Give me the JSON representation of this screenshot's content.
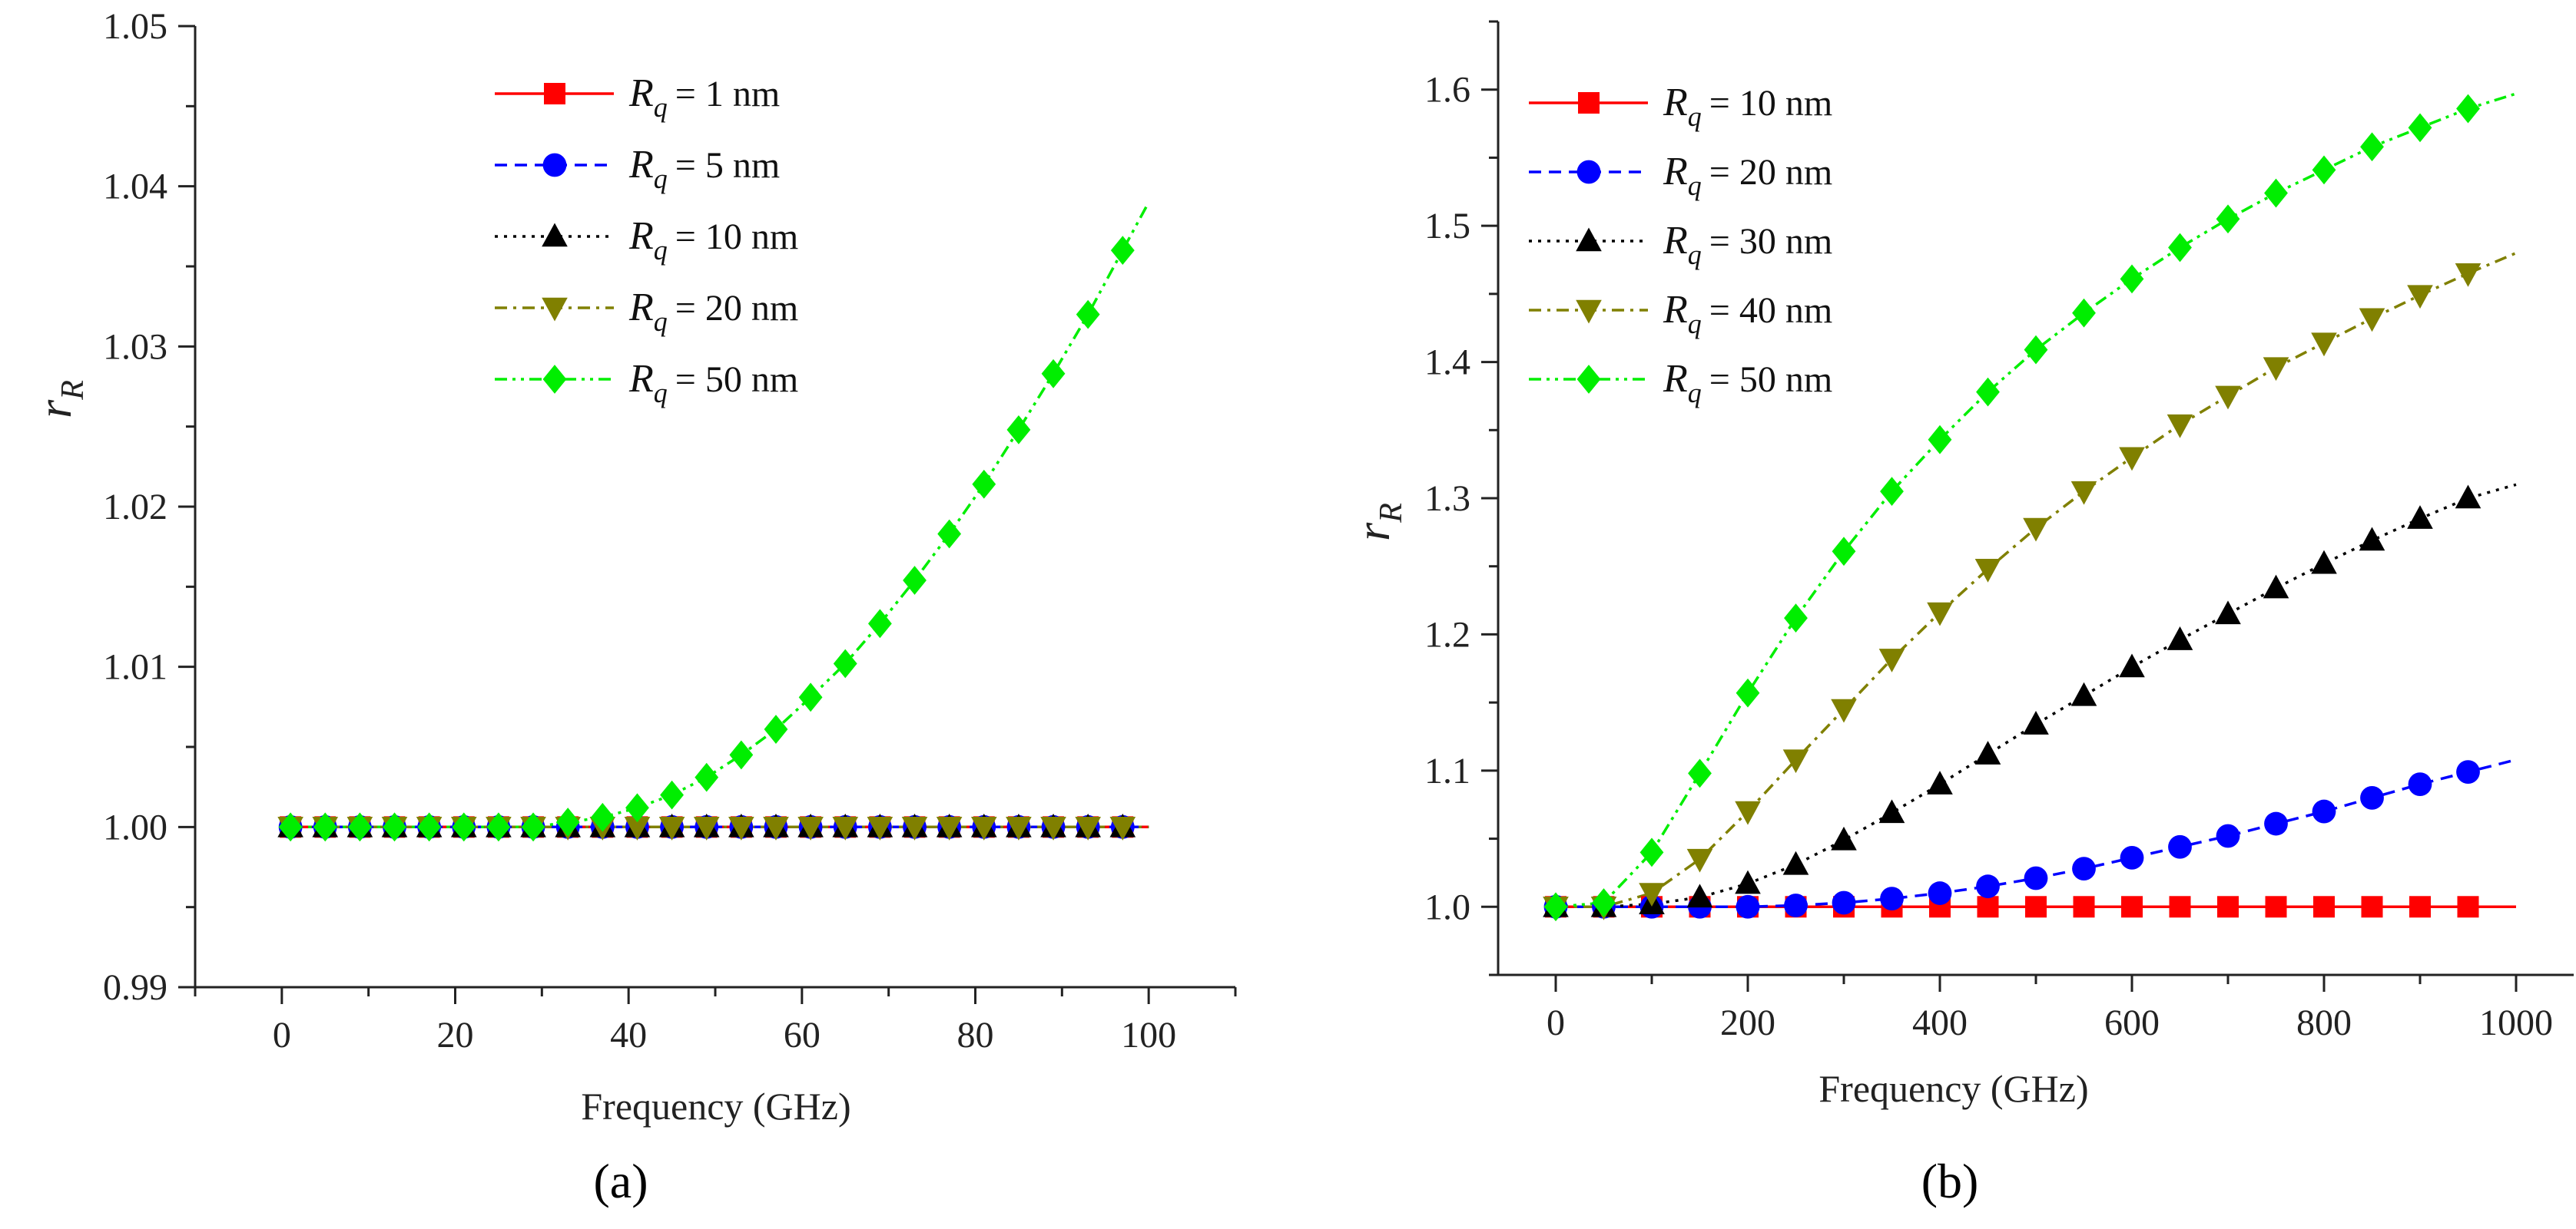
{
  "chart_data": [
    {
      "type": "line",
      "panel": "(a)",
      "xlabel": "Frequency (GHz)",
      "ylabel": "r_R",
      "ylabel_main": "r",
      "ylabel_sub": "R",
      "xlim": [
        -10,
        110
      ],
      "ylim": [
        0.99,
        1.05
      ],
      "xticks": [
        0,
        20,
        40,
        60,
        80,
        100
      ],
      "yticks": [
        0.99,
        1.0,
        1.01,
        1.02,
        1.03,
        1.04,
        1.05
      ],
      "ytick_labels": [
        "0.99",
        "1.00",
        "1.01",
        "1.02",
        "1.03",
        "1.04",
        "1.05"
      ],
      "legend_position": "top-center",
      "series": [
        {
          "name": "Rq = 1 nm",
          "value_text": "= 1 nm",
          "color": "#ff0000",
          "marker": "square",
          "dash": "solid",
          "x": [
            1,
            5,
            9,
            13,
            17,
            21,
            25,
            29,
            33,
            37,
            41,
            45,
            49,
            53,
            57,
            61,
            65,
            69,
            73,
            77,
            81,
            85,
            89,
            93,
            97
          ],
          "y": [
            1,
            1,
            1,
            1,
            1,
            1,
            1,
            1,
            1,
            1,
            1,
            1,
            1,
            1,
            1,
            1,
            1,
            1,
            1,
            1,
            1,
            1,
            1,
            1,
            1
          ],
          "line_end": [
            100,
            1.0
          ]
        },
        {
          "name": "Rq = 5 nm",
          "value_text": "= 5 nm",
          "color": "#0000ff",
          "marker": "circle",
          "dash": "dash",
          "x": [
            1,
            5,
            9,
            13,
            17,
            21,
            25,
            29,
            33,
            37,
            41,
            45,
            49,
            53,
            57,
            61,
            65,
            69,
            73,
            77,
            81,
            85,
            89,
            93,
            97
          ],
          "y": [
            1,
            1,
            1,
            1,
            1,
            1,
            1,
            1,
            1,
            1,
            1,
            1,
            1,
            1,
            1,
            1,
            1,
            1,
            1,
            1,
            1,
            1,
            1,
            1,
            1
          ],
          "line_end": [
            100,
            1.0
          ]
        },
        {
          "name": "Rq = 10 nm",
          "value_text": "= 10 nm",
          "color": "#000000",
          "marker": "triangle-up",
          "dash": "dot",
          "x": [
            1,
            5,
            9,
            13,
            17,
            21,
            25,
            29,
            33,
            37,
            41,
            45,
            49,
            53,
            57,
            61,
            65,
            69,
            73,
            77,
            81,
            85,
            89,
            93,
            97
          ],
          "y": [
            1,
            1,
            1,
            1,
            1,
            1,
            1,
            1,
            1,
            1,
            1,
            1,
            1,
            1,
            1,
            1,
            1,
            1,
            1,
            1,
            1,
            1,
            1,
            1,
            1
          ],
          "line_end": [
            100,
            1.0
          ]
        },
        {
          "name": "Rq = 20 nm",
          "value_text": "= 20 nm",
          "color": "#808000",
          "marker": "triangle-down",
          "dash": "dashdot",
          "x": [
            1,
            5,
            9,
            13,
            17,
            21,
            25,
            29,
            33,
            37,
            41,
            45,
            49,
            53,
            57,
            61,
            65,
            69,
            73,
            77,
            81,
            85,
            89,
            93,
            97
          ],
          "y": [
            1,
            1,
            1,
            1,
            1,
            1,
            1,
            1,
            1,
            1,
            1,
            1,
            1,
            1,
            1,
            1,
            1,
            1,
            1,
            1,
            1,
            1,
            1,
            1,
            1
          ],
          "line_end": [
            100,
            1.0
          ]
        },
        {
          "name": "Rq = 50 nm",
          "value_text": "= 50 nm",
          "color": "#00ee00",
          "marker": "diamond",
          "dash": "dashdotdot",
          "x": [
            1,
            5,
            9,
            13,
            17,
            21,
            25,
            29,
            33,
            37,
            41,
            45,
            49,
            53,
            57,
            61,
            65,
            69,
            73,
            77,
            81,
            85,
            89,
            93,
            97
          ],
          "y": [
            1,
            1,
            1,
            1,
            1,
            1,
            1,
            1,
            1.0003,
            1.0006,
            1.0012,
            1.002,
            1.0031,
            1.0045,
            1.0061,
            1.0081,
            1.0102,
            1.0127,
            1.0154,
            1.0183,
            1.0214,
            1.0248,
            1.0283,
            1.032,
            1.036
          ],
          "line_end": [
            100,
            1.039
          ]
        }
      ]
    },
    {
      "type": "line",
      "panel": "(b)",
      "xlabel": "Frequency (GHz)",
      "ylabel": "r_R",
      "ylabel_main": "r",
      "ylabel_sub": "R",
      "xlim": [
        -60,
        1060
      ],
      "ylim": [
        0.95,
        1.65
      ],
      "xticks": [
        0,
        200,
        400,
        600,
        800,
        1000
      ],
      "yticks": [
        1.0,
        1.1,
        1.2,
        1.3,
        1.4,
        1.5,
        1.6
      ],
      "ytick_labels": [
        "1.0",
        "1.1",
        "1.2",
        "1.3",
        "1.4",
        "1.5",
        "1.6"
      ],
      "legend_position": "top-left",
      "series": [
        {
          "name": "Rq = 10 nm",
          "value_text": "= 10 nm",
          "color": "#ff0000",
          "marker": "square",
          "dash": "solid",
          "x": [
            0,
            50,
            100,
            150,
            200,
            250,
            300,
            350,
            400,
            450,
            500,
            550,
            600,
            650,
            700,
            750,
            800,
            850,
            900,
            950
          ],
          "y": [
            1,
            1,
            1,
            1,
            1,
            1,
            1,
            1,
            1,
            1,
            1,
            1,
            1,
            1,
            1,
            1,
            1,
            1,
            1,
            1
          ],
          "line_end": [
            1000,
            1.0
          ]
        },
        {
          "name": "Rq = 20 nm",
          "value_text": "= 20 nm",
          "color": "#0000ff",
          "marker": "circle",
          "dash": "dash",
          "x": [
            0,
            50,
            100,
            150,
            200,
            250,
            300,
            350,
            400,
            450,
            500,
            550,
            600,
            650,
            700,
            750,
            800,
            850,
            900,
            950
          ],
          "y": [
            1,
            1,
            1,
            1,
            1,
            1.001,
            1.003,
            1.006,
            1.01,
            1.015,
            1.021,
            1.028,
            1.036,
            1.044,
            1.052,
            1.061,
            1.07,
            1.08,
            1.09,
            1.099
          ],
          "line_end": [
            1000,
            1.108
          ]
        },
        {
          "name": "Rq = 30 nm",
          "value_text": "= 30 nm",
          "color": "#000000",
          "marker": "triangle-up",
          "dash": "dot",
          "x": [
            0,
            50,
            100,
            150,
            200,
            250,
            300,
            350,
            400,
            450,
            500,
            550,
            600,
            650,
            700,
            750,
            800,
            850,
            900,
            950
          ],
          "y": [
            1,
            1,
            1.002,
            1.007,
            1.017,
            1.031,
            1.049,
            1.069,
            1.09,
            1.112,
            1.134,
            1.155,
            1.176,
            1.196,
            1.215,
            1.234,
            1.252,
            1.269,
            1.285,
            1.3
          ],
          "line_end": [
            1000,
            1.31
          ]
        },
        {
          "name": "Rq = 40 nm",
          "value_text": "= 40 nm",
          "color": "#808000",
          "marker": "triangle-down",
          "dash": "dashdot",
          "x": [
            0,
            50,
            100,
            150,
            200,
            250,
            300,
            350,
            400,
            450,
            500,
            550,
            600,
            650,
            700,
            750,
            800,
            850,
            900,
            950
          ],
          "y": [
            1,
            1,
            1.01,
            1.035,
            1.07,
            1.108,
            1.145,
            1.182,
            1.216,
            1.248,
            1.278,
            1.305,
            1.33,
            1.354,
            1.375,
            1.396,
            1.414,
            1.432,
            1.449,
            1.465
          ],
          "line_end": [
            1000,
            1.48
          ]
        },
        {
          "name": "Rq = 50 nm",
          "value_text": "= 50 nm",
          "color": "#00ee00",
          "marker": "diamond",
          "dash": "dashdotdot",
          "x": [
            0,
            50,
            100,
            150,
            200,
            250,
            300,
            350,
            400,
            450,
            500,
            550,
            600,
            650,
            700,
            750,
            800,
            850,
            900,
            950
          ],
          "y": [
            1,
            1.003,
            1.04,
            1.098,
            1.157,
            1.212,
            1.261,
            1.305,
            1.343,
            1.378,
            1.409,
            1.436,
            1.461,
            1.484,
            1.505,
            1.524,
            1.541,
            1.558,
            1.572,
            1.586
          ],
          "line_end": [
            1000,
            1.597
          ]
        }
      ]
    }
  ],
  "legend_symbol": "R",
  "legend_subscript": "q"
}
